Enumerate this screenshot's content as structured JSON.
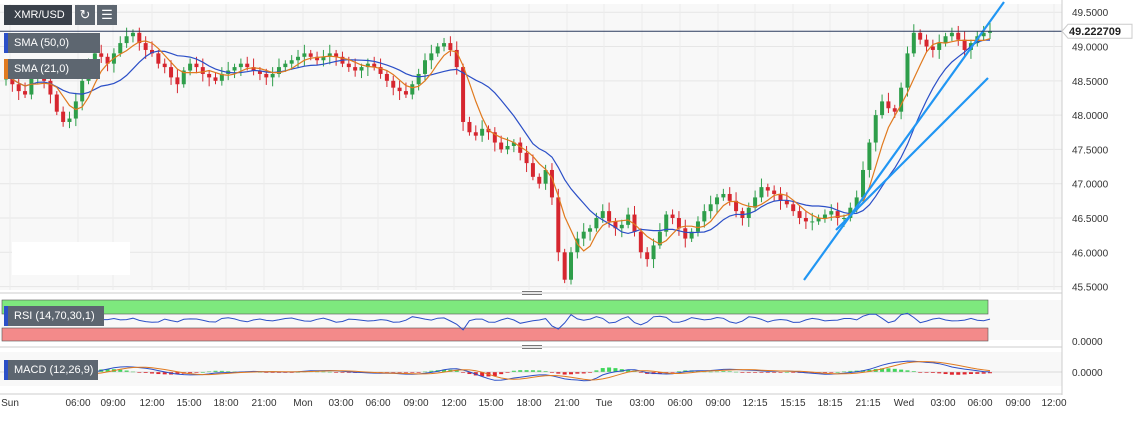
{
  "symbol": "XMR/USD",
  "toolbar": {
    "refresh_icon": "refresh-icon",
    "settings_icon": "sliders-icon"
  },
  "indicators": {
    "sma50": {
      "label": "SMA (50,0)",
      "color": "#2b4fc7"
    },
    "sma21": {
      "label": "SMA (21,0)",
      "color": "#e07a1f"
    },
    "rsi": {
      "label": "RSI (14,70,30,1)"
    },
    "macd": {
      "label": "MACD (12,26,9)"
    }
  },
  "price_tag": "49.222709",
  "colors": {
    "up": "#2e9e4a",
    "down": "#d6262f",
    "trend": "#2196f3",
    "rsi_top": "#7ee87e",
    "rsi_bottom": "#f38a8a",
    "macd_line": "#2b4fc7",
    "signal_line": "#e07a1f"
  },
  "chart_data": [
    {
      "type": "candlestick",
      "x_ticks": [
        "Sun",
        "06:00",
        "09:00",
        "12:00",
        "15:00",
        "18:00",
        "21:00",
        "Mon",
        "03:00",
        "06:00",
        "09:00",
        "12:00",
        "15:00",
        "18:00",
        "21:00",
        "Tue",
        "03:00",
        "06:00",
        "09:00",
        "12:15",
        "15:15",
        "18:15",
        "21:15",
        "Wed",
        "03:00",
        "06:00",
        "09:00",
        "12:00"
      ],
      "y_ticks": [
        "49.5000",
        "49.0000",
        "48.5000",
        "48.0000",
        "47.5000",
        "47.0000",
        "46.5000",
        "46.0000",
        "45.5000"
      ],
      "ylim": [
        45.45,
        49.62
      ],
      "last_price": 49.222709,
      "grid": true,
      "close": [
        48.6,
        48.45,
        48.35,
        48.3,
        48.55,
        48.62,
        48.5,
        48.3,
        48.05,
        47.9,
        47.95,
        48.2,
        48.5,
        48.75,
        48.9,
        48.85,
        48.75,
        48.9,
        49.05,
        49.15,
        49.2,
        49.05,
        48.95,
        48.9,
        48.75,
        48.7,
        48.55,
        48.45,
        48.65,
        48.75,
        48.7,
        48.6,
        48.55,
        48.5,
        48.6,
        48.65,
        48.7,
        48.75,
        48.7,
        48.65,
        48.6,
        48.55,
        48.6,
        48.7,
        48.75,
        48.8,
        48.85,
        48.9,
        48.85,
        48.8,
        48.85,
        48.9,
        48.85,
        48.75,
        48.7,
        48.65,
        48.7,
        48.75,
        48.7,
        48.6,
        48.5,
        48.4,
        48.35,
        48.3,
        48.45,
        48.6,
        48.8,
        48.9,
        49.0,
        49.05,
        48.95,
        48.7,
        47.9,
        47.75,
        47.7,
        47.8,
        47.75,
        47.6,
        47.5,
        47.55,
        47.6,
        47.45,
        47.3,
        47.1,
        47.0,
        47.2,
        46.8,
        46.0,
        45.6,
        46.0,
        46.2,
        46.3,
        46.35,
        46.5,
        46.6,
        46.45,
        46.35,
        46.4,
        46.55,
        46.3,
        46.0,
        45.9,
        46.1,
        46.3,
        46.55,
        46.5,
        46.35,
        46.2,
        46.3,
        46.45,
        46.6,
        46.7,
        46.8,
        46.85,
        46.75,
        46.6,
        46.5,
        46.65,
        46.8,
        46.95,
        46.9,
        46.85,
        46.75,
        46.7,
        46.6,
        46.5,
        46.45,
        46.45,
        46.5,
        46.55,
        46.6,
        46.5,
        46.5,
        46.65,
        46.8,
        47.2,
        47.6,
        48.0,
        48.2,
        48.1,
        48.05,
        48.4,
        48.9,
        49.2,
        49.1,
        49.0,
        48.95,
        49.05,
        49.15,
        49.2,
        49.1,
        48.95,
        49.05,
        49.15,
        49.2,
        49.22
      ]
    },
    {
      "type": "line",
      "name": "RSI (14,70,30,1)",
      "ylim": [
        0,
        100
      ]
    },
    {
      "type": "line",
      "name": "MACD (12,26,9)",
      "y_ticks": [
        "0.0000"
      ]
    }
  ]
}
